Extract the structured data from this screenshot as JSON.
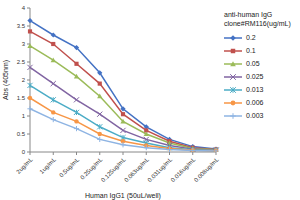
{
  "chart_data": {
    "type": "line",
    "x_label": "Human IgG1 (50uL/well)",
    "y_label": "Abs (405nm)",
    "legend_title": "anti-human IgG clone#RM116(ug/mL)",
    "categories": [
      "2ug/mL",
      "1ug/mL",
      "0.5ug/mL",
      "0.25ug/mL",
      "0.125ug/mL",
      "0.063ug/mL",
      "0.031ug/mL",
      "0.016ug/mL",
      "0.008ug/mL"
    ],
    "ylim": [
      0,
      4
    ],
    "yticks": [
      0,
      0.5,
      1,
      1.5,
      2,
      2.5,
      3,
      3.5,
      4
    ],
    "grid": false,
    "legend": "right",
    "series": [
      {
        "name": "0.2",
        "color": "#4472c4",
        "marker": "diamond",
        "values": [
          3.65,
          3.25,
          2.9,
          2.2,
          1.2,
          0.7,
          0.35,
          0.15,
          0.08
        ]
      },
      {
        "name": "0.1",
        "color": "#c0504d",
        "marker": "square",
        "values": [
          3.35,
          3.0,
          2.45,
          1.9,
          1.05,
          0.6,
          0.3,
          0.12,
          0.07
        ]
      },
      {
        "name": "0.05",
        "color": "#9bbb59",
        "marker": "triangle",
        "values": [
          2.95,
          2.55,
          2.1,
          1.55,
          0.85,
          0.5,
          0.25,
          0.1,
          0.06
        ]
      },
      {
        "name": "0.025",
        "color": "#8064a2",
        "marker": "x",
        "values": [
          2.35,
          1.9,
          1.45,
          1.05,
          0.6,
          0.35,
          0.18,
          0.08,
          0.05
        ]
      },
      {
        "name": "0.013",
        "color": "#4bacc6",
        "marker": "asterisk",
        "values": [
          1.85,
          1.45,
          1.1,
          0.7,
          0.4,
          0.25,
          0.12,
          0.06,
          0.05
        ]
      },
      {
        "name": "0.006",
        "color": "#f79646",
        "marker": "circle",
        "values": [
          1.5,
          1.1,
          0.85,
          0.5,
          0.3,
          0.18,
          0.1,
          0.05,
          0.04
        ]
      },
      {
        "name": "0.003",
        "color": "#8eb4e3",
        "marker": "plus",
        "values": [
          1.2,
          0.9,
          0.65,
          0.35,
          0.2,
          0.12,
          0.07,
          0.04,
          0.03
        ]
      }
    ]
  }
}
